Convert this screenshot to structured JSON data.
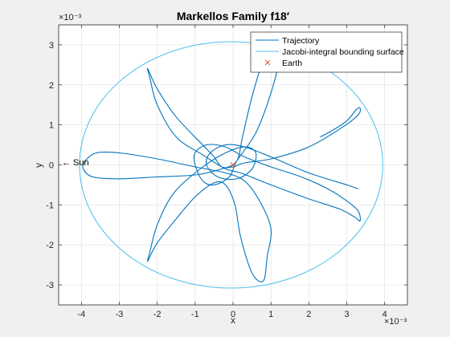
{
  "chart_data": {
    "type": "line",
    "title": "Markellos Family f18′",
    "xlabel": "x",
    "ylabel": "y",
    "x_exponent_label": "×10⁻³",
    "y_exponent_label": "×10⁻³",
    "xlim": [
      -4.6,
      4.6
    ],
    "ylim": [
      -3.5,
      3.5
    ],
    "xticks": [
      -4,
      -3,
      -2,
      -1,
      0,
      1,
      2,
      3,
      4
    ],
    "yticks": [
      -3,
      -2,
      -1,
      0,
      1,
      2,
      3
    ],
    "grid": true,
    "legend_position": "top-right",
    "annotation": "← Sun",
    "series": [
      {
        "name": "Trajectory",
        "color": "#0072bd",
        "style": "line",
        "points": [
          [
            2.3,
            0.7
          ],
          [
            2.6,
            0.85
          ],
          [
            3.0,
            1.1
          ],
          [
            3.25,
            1.38
          ],
          [
            3.35,
            1.42
          ],
          [
            3.3,
            1.25
          ],
          [
            2.9,
            0.95
          ],
          [
            2.0,
            0.45
          ],
          [
            1.0,
            0.15
          ],
          [
            0.3,
            0.05
          ],
          [
            0.0,
            -0.05
          ],
          [
            -0.3,
            -0.05
          ],
          [
            -0.5,
            0.2
          ],
          [
            -0.8,
            0.5
          ],
          [
            -1.5,
            1.2
          ],
          [
            -2.0,
            1.9
          ],
          [
            -2.25,
            2.4
          ],
          [
            -2.2,
            2.2
          ],
          [
            -2.0,
            1.5
          ],
          [
            -1.5,
            0.7
          ],
          [
            -0.8,
            0.25
          ],
          [
            -0.2,
            -0.1
          ],
          [
            0.2,
            -0.2
          ],
          [
            1.0,
            -0.5
          ],
          [
            2.0,
            -0.85
          ],
          [
            2.8,
            -1.1
          ],
          [
            3.2,
            -1.3
          ],
          [
            3.35,
            -1.4
          ],
          [
            3.3,
            -1.15
          ],
          [
            3.0,
            -0.9
          ],
          [
            2.5,
            -0.6
          ],
          [
            1.8,
            -0.3
          ],
          [
            1.0,
            -0.05
          ],
          [
            0.3,
            0.2
          ],
          [
            -0.2,
            0.45
          ],
          [
            -0.7,
            0.5
          ],
          [
            -1.0,
            0.3
          ],
          [
            -1.0,
            0.0
          ],
          [
            -0.8,
            -0.4
          ],
          [
            -0.5,
            -0.5
          ],
          [
            -0.1,
            -0.3
          ],
          [
            0.1,
            0.1
          ],
          [
            0.6,
            0.8
          ],
          [
            1.0,
            1.8
          ],
          [
            1.2,
            2.6
          ],
          [
            1.1,
            2.9
          ],
          [
            0.8,
            2.6
          ],
          [
            0.5,
            1.7
          ],
          [
            0.25,
            0.7
          ],
          [
            0.1,
            0.1
          ],
          [
            -0.3,
            -0.1
          ],
          [
            -1.0,
            -0.25
          ],
          [
            -2.0,
            -0.3
          ],
          [
            -3.0,
            -0.35
          ],
          [
            -3.7,
            -0.3
          ],
          [
            -3.95,
            -0.1
          ],
          [
            -3.9,
            0.1
          ],
          [
            -3.6,
            0.3
          ],
          [
            -3.0,
            0.3
          ],
          [
            -2.0,
            0.15
          ],
          [
            -1.0,
            -0.05
          ],
          [
            -0.2,
            -0.2
          ],
          [
            0.3,
            -0.4
          ],
          [
            0.7,
            -0.9
          ],
          [
            1.0,
            -1.6
          ],
          [
            0.9,
            -2.3
          ],
          [
            0.8,
            -2.9
          ],
          [
            0.5,
            -2.7
          ],
          [
            0.2,
            -1.8
          ],
          [
            0.05,
            -1.0
          ],
          [
            -0.2,
            -0.5
          ],
          [
            -0.5,
            -0.45
          ],
          [
            -1.0,
            -0.8
          ],
          [
            -1.5,
            -1.35
          ],
          [
            -2.0,
            -1.95
          ],
          [
            -2.25,
            -2.4
          ],
          [
            -2.2,
            -2.2
          ],
          [
            -2.0,
            -1.5
          ],
          [
            -1.6,
            -0.75
          ],
          [
            -1.0,
            -0.2
          ],
          [
            -0.3,
            0.25
          ],
          [
            0.3,
            0.45
          ],
          [
            0.6,
            0.3
          ],
          [
            0.5,
            -0.1
          ],
          [
            0.1,
            -0.35
          ],
          [
            -0.4,
            -0.3
          ],
          [
            -0.7,
            0.0
          ],
          [
            -0.6,
            0.3
          ],
          [
            -0.2,
            0.5
          ],
          [
            0.3,
            0.45
          ],
          [
            1.0,
            0.2
          ],
          [
            2.0,
            -0.2
          ],
          [
            3.0,
            -0.5
          ],
          [
            3.3,
            -0.6
          ]
        ]
      },
      {
        "name": "Jacobi-integral bounding surface",
        "color": "#4dbeee",
        "style": "line",
        "ellipse": {
          "cx": -0.05,
          "cy": 0.0,
          "rx": 4.0,
          "ry": 3.08
        }
      },
      {
        "name": "Earth",
        "color": "#d95319",
        "style": "marker-x",
        "points": [
          [
            0.0,
            0.0
          ]
        ]
      }
    ]
  }
}
